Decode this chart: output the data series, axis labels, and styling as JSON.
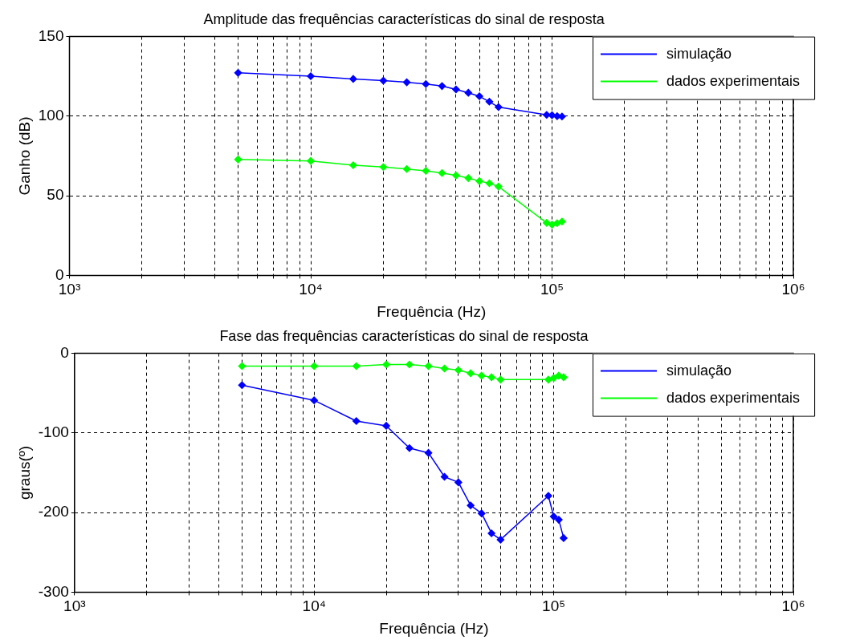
{
  "chart_data": [
    {
      "type": "line",
      "title": "Amplitude das frequências características do sinal de resposta",
      "xlabel": "Frequência (Hz)",
      "ylabel": "Ganho (dB)",
      "log": "x",
      "grid": true,
      "legend": "top right",
      "marker": "diamond",
      "line_style": "solid",
      "xlim": [
        1000,
        1000000
      ],
      "ylim": [
        0,
        150
      ],
      "yticks": [
        0,
        50,
        100,
        150
      ],
      "xticks": [
        {
          "value": 1000,
          "label": "10³"
        },
        {
          "value": 2000,
          "label": null
        },
        {
          "value": 3000,
          "label": null
        },
        {
          "value": 4000,
          "label": null
        },
        {
          "value": 5000,
          "label": null
        },
        {
          "value": 6000,
          "label": null
        },
        {
          "value": 7000,
          "label": null
        },
        {
          "value": 8000,
          "label": null
        },
        {
          "value": 9000,
          "label": null
        },
        {
          "value": 10000,
          "label": "10⁴"
        },
        {
          "value": 20000,
          "label": null
        },
        {
          "value": 30000,
          "label": null
        },
        {
          "value": 40000,
          "label": null
        },
        {
          "value": 50000,
          "label": null
        },
        {
          "value": 60000,
          "label": null
        },
        {
          "value": 70000,
          "label": null
        },
        {
          "value": 80000,
          "label": null
        },
        {
          "value": 90000,
          "label": null
        },
        {
          "value": 100000,
          "label": "10⁵"
        },
        {
          "value": 200000,
          "label": null
        },
        {
          "value": 300000,
          "label": null
        },
        {
          "value": 400000,
          "label": null
        },
        {
          "value": 500000,
          "label": null
        },
        {
          "value": 600000,
          "label": null
        },
        {
          "value": 700000,
          "label": null
        },
        {
          "value": 800000,
          "label": null
        },
        {
          "value": 900000,
          "label": null
        },
        {
          "value": 1000000,
          "label": "10⁶"
        }
      ],
      "x": [
        5000,
        10000,
        15000,
        20000,
        25000,
        30000,
        35000,
        40000,
        45000,
        50000,
        55000,
        60000,
        95000,
        100000,
        105000,
        110000
      ],
      "series": [
        {
          "name": "simulação",
          "color": "#0000ff",
          "values": [
            127.2,
            125.1,
            123.4,
            122.3,
            121.3,
            120.2,
            118.9,
            116.8,
            114.7,
            112.5,
            109.1,
            105.7,
            100.8,
            100.6,
            100,
            99.8
          ]
        },
        {
          "name": "dados experimentais",
          "color": "#00ff00",
          "values": [
            72.8,
            71.9,
            69.2,
            68.1,
            66.8,
            65.7,
            64.3,
            62.8,
            61.1,
            59.2,
            57.9,
            55.8,
            33,
            31.9,
            32.8,
            33.8
          ]
        }
      ]
    },
    {
      "type": "line",
      "title": "Fase das frequências características do sinal de resposta",
      "xlabel": "Frequência (Hz)",
      "ylabel": "graus(º)",
      "log": "x",
      "grid": true,
      "legend": "top right",
      "marker": "diamond",
      "line_style": "solid",
      "xlim": [
        1000,
        1000000
      ],
      "ylim": [
        -300,
        0
      ],
      "yticks": [
        -300,
        -200,
        -100,
        0
      ],
      "xticks": [
        {
          "value": 1000,
          "label": "10³"
        },
        {
          "value": 2000,
          "label": null
        },
        {
          "value": 3000,
          "label": null
        },
        {
          "value": 4000,
          "label": null
        },
        {
          "value": 5000,
          "label": null
        },
        {
          "value": 6000,
          "label": null
        },
        {
          "value": 7000,
          "label": null
        },
        {
          "value": 8000,
          "label": null
        },
        {
          "value": 9000,
          "label": null
        },
        {
          "value": 10000,
          "label": "10⁴"
        },
        {
          "value": 20000,
          "label": null
        },
        {
          "value": 30000,
          "label": null
        },
        {
          "value": 40000,
          "label": null
        },
        {
          "value": 50000,
          "label": null
        },
        {
          "value": 60000,
          "label": null
        },
        {
          "value": 70000,
          "label": null
        },
        {
          "value": 80000,
          "label": null
        },
        {
          "value": 90000,
          "label": null
        },
        {
          "value": 100000,
          "label": "10⁵"
        },
        {
          "value": 200000,
          "label": null
        },
        {
          "value": 300000,
          "label": null
        },
        {
          "value": 400000,
          "label": null
        },
        {
          "value": 500000,
          "label": null
        },
        {
          "value": 600000,
          "label": null
        },
        {
          "value": 700000,
          "label": null
        },
        {
          "value": 800000,
          "label": null
        },
        {
          "value": 900000,
          "label": null
        },
        {
          "value": 1000000,
          "label": "10⁶"
        }
      ],
      "x": [
        5000,
        10000,
        15000,
        20000,
        25000,
        30000,
        35000,
        40000,
        45000,
        50000,
        55000,
        60000,
        95000,
        100000,
        105000,
        110000
      ],
      "series": [
        {
          "name": "simulação",
          "color": "#0000ff",
          "values": [
            -40,
            -59,
            -85,
            -91,
            -119,
            -125,
            -155,
            -162,
            -191,
            -201,
            -226,
            -234,
            -179,
            -205,
            -209,
            -232
          ]
        },
        {
          "name": "dados experimentais",
          "color": "#00ff00",
          "values": [
            -16,
            -16,
            -16,
            -14,
            -14,
            -16,
            -19,
            -21,
            -25,
            -28,
            -30,
            -33,
            -33,
            -31,
            -28,
            -30
          ]
        }
      ]
    }
  ]
}
